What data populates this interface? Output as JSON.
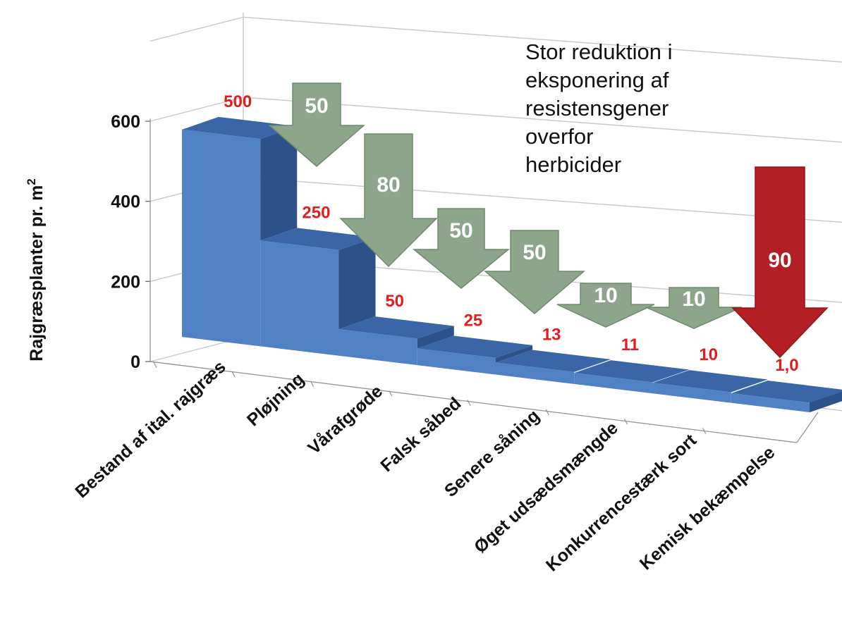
{
  "chart_data": {
    "type": "bar",
    "style": "3d-waterfall",
    "ylabel": "Rajgræsplanter pr. m",
    "ylabel_superscript": "2",
    "ylim": [
      0,
      600
    ],
    "yticks": [
      "0",
      "200",
      "400",
      "600"
    ],
    "grid": true,
    "categories": [
      "Bestand af ital. rajgræs",
      "Pløjning",
      "Vårafgrøde",
      "Falsk såbed",
      "Senere såning",
      "Øget udsædsmængde",
      "Konkurrencestærk sort",
      "Kemisk bekæmpelse"
    ],
    "values": [
      500,
      250,
      50,
      25,
      13,
      11,
      10,
      1.0
    ],
    "value_labels": [
      "500",
      "250",
      "50",
      "25",
      "13",
      "11",
      "10",
      "1,0"
    ],
    "reductions": [
      {
        "label": "50",
        "color": "#8da58b"
      },
      {
        "label": "80",
        "color": "#8da58b"
      },
      {
        "label": "50",
        "color": "#8da58b"
      },
      {
        "label": "50",
        "color": "#8da58b"
      },
      {
        "label": "10",
        "color": "#8da58b"
      },
      {
        "label": "10",
        "color": "#8da58b"
      },
      {
        "label": "90",
        "color": "#b31f24"
      }
    ],
    "annotation_lines": [
      "Stor reduktion i",
      "eksponering af",
      "resistensgener",
      "overfor",
      "herbicider"
    ],
    "colors": {
      "bar_front": "#4f81c4",
      "bar_side": "#2d5289",
      "bar_top": "#3a66a8",
      "value_label": "#e01e1e",
      "grid": "#c8c8c8"
    }
  }
}
